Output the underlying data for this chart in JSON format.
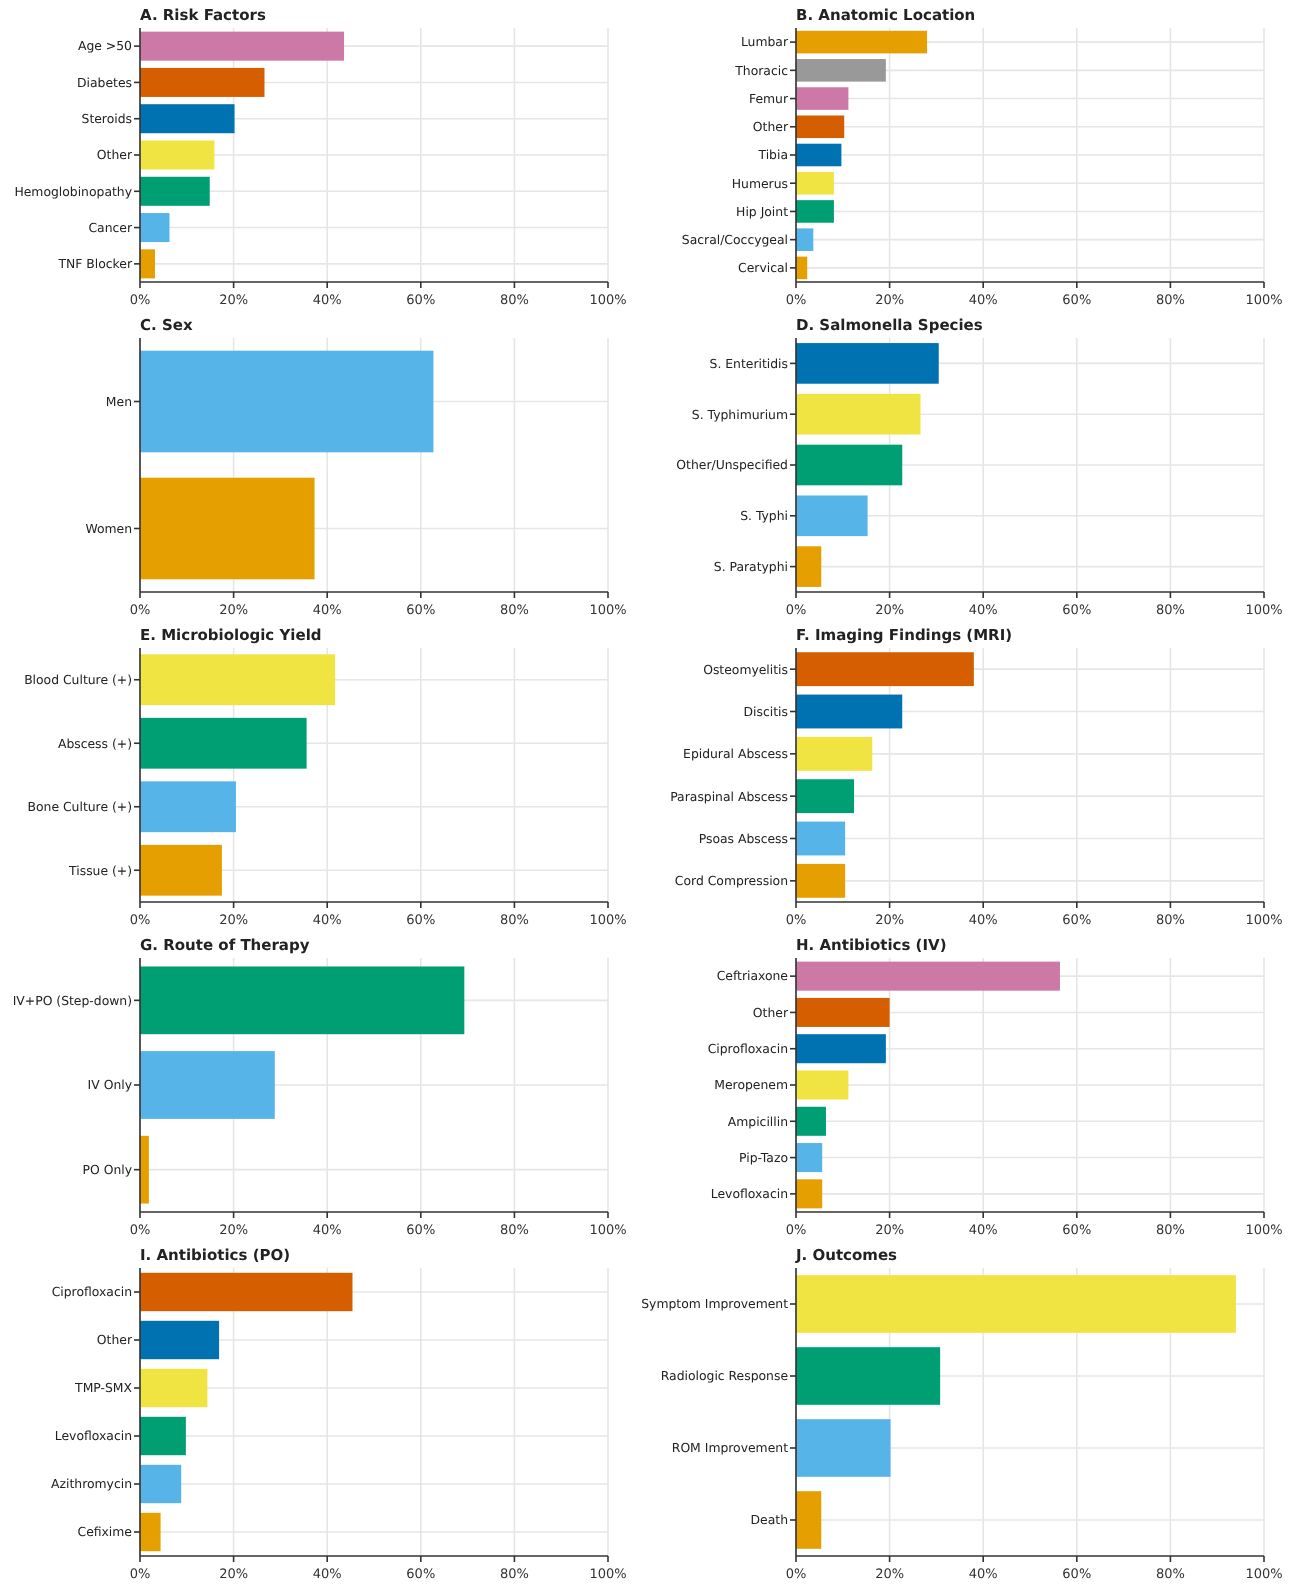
{
  "chart_data": [
    {
      "type": "bar",
      "orientation": "horizontal",
      "title": "A. Risk Factors",
      "categories": [
        "Age >50",
        "Diabetes",
        "Steroids",
        "Other",
        "Hemoglobinopathy",
        "Cancer",
        "TNF Blocker"
      ],
      "values": [
        43.6,
        26.6,
        20.2,
        15.9,
        14.9,
        6.3,
        3.2
      ],
      "colors": [
        "#cc79a7",
        "#d55e00",
        "#0072b2",
        "#f0e442",
        "#009e73",
        "#56b4e9",
        "#e69f00"
      ],
      "xlim": [
        0,
        100
      ],
      "xticks": [
        {
          "value": 0,
          "label": "0%"
        },
        {
          "value": 20,
          "label": "20%"
        },
        {
          "value": 40,
          "label": "40%"
        },
        {
          "value": 60,
          "label": "60%"
        },
        {
          "value": 80,
          "label": "80%"
        },
        {
          "value": 100,
          "label": "100%"
        }
      ],
      "grid": true
    },
    {
      "type": "bar",
      "orientation": "horizontal",
      "title": "B. Anatomic Location",
      "categories": [
        "Lumbar",
        "Thoracic",
        "Femur",
        "Other",
        "Tibia",
        "Humerus",
        "Hip Joint",
        "Sacral/Coccygeal",
        "Cervical"
      ],
      "values": [
        28,
        19.2,
        11.2,
        10.3,
        9.7,
        8.1,
        8.1,
        3.7,
        2.4
      ],
      "colors": [
        "#e69f00",
        "#999999",
        "#cc79a7",
        "#d55e00",
        "#0072b2",
        "#f0e442",
        "#009e73",
        "#56b4e9",
        "#e69f00"
      ],
      "xlim": [
        0,
        100
      ],
      "xticks": [
        {
          "value": 0,
          "label": "0%"
        },
        {
          "value": 20,
          "label": "20%"
        },
        {
          "value": 40,
          "label": "40%"
        },
        {
          "value": 60,
          "label": "60%"
        },
        {
          "value": 80,
          "label": "80%"
        },
        {
          "value": 100,
          "label": "100%"
        }
      ],
      "grid": true
    },
    {
      "type": "bar",
      "orientation": "horizontal",
      "title": "C. Sex",
      "categories": [
        "Men",
        "Women"
      ],
      "values": [
        62.7,
        37.3
      ],
      "colors": [
        "#56b4e9",
        "#e69f00"
      ],
      "xlim": [
        0,
        100
      ],
      "xticks": [
        {
          "value": 0,
          "label": "0%"
        },
        {
          "value": 20,
          "label": "20%"
        },
        {
          "value": 40,
          "label": "40%"
        },
        {
          "value": 60,
          "label": "60%"
        },
        {
          "value": 80,
          "label": "80%"
        },
        {
          "value": 100,
          "label": "100%"
        }
      ],
      "grid": true
    },
    {
      "type": "bar",
      "orientation": "horizontal",
      "title": "D. Salmonella Species",
      "categories": [
        "S. Enteritidis",
        "S. Typhimurium",
        "Other/Unspecified",
        "S. Typhi",
        "S. Paratyphi"
      ],
      "values": [
        30.5,
        26.6,
        22.7,
        15.3,
        5.4
      ],
      "colors": [
        "#0072b2",
        "#f0e442",
        "#009e73",
        "#56b4e9",
        "#e69f00"
      ],
      "xlim": [
        0,
        100
      ],
      "xticks": [
        {
          "value": 0,
          "label": "0%"
        },
        {
          "value": 20,
          "label": "20%"
        },
        {
          "value": 40,
          "label": "40%"
        },
        {
          "value": 60,
          "label": "60%"
        },
        {
          "value": 80,
          "label": "80%"
        },
        {
          "value": 100,
          "label": "100%"
        }
      ],
      "grid": true
    },
    {
      "type": "bar",
      "orientation": "horizontal",
      "title": "E. Microbiologic Yield",
      "categories": [
        "Blood Culture (+)",
        "Abscess (+)",
        "Bone Culture (+)",
        "Tissue (+)"
      ],
      "values": [
        41.7,
        35.6,
        20.5,
        17.5
      ],
      "colors": [
        "#f0e442",
        "#009e73",
        "#56b4e9",
        "#e69f00"
      ],
      "xlim": [
        0,
        100
      ],
      "xticks": [
        {
          "value": 0,
          "label": "0%"
        },
        {
          "value": 20,
          "label": "20%"
        },
        {
          "value": 40,
          "label": "40%"
        },
        {
          "value": 60,
          "label": "60%"
        },
        {
          "value": 80,
          "label": "80%"
        },
        {
          "value": 100,
          "label": "100%"
        }
      ],
      "grid": true
    },
    {
      "type": "bar",
      "orientation": "horizontal",
      "title": "F. Imaging Findings (MRI)",
      "categories": [
        "Osteomyelitis",
        "Discitis",
        "Epidural Abscess",
        "Paraspinal Abscess",
        "Psoas Abscess",
        "Cord Compression"
      ],
      "values": [
        38,
        22.7,
        16.3,
        12.4,
        10.5,
        10.5
      ],
      "colors": [
        "#d55e00",
        "#0072b2",
        "#f0e442",
        "#009e73",
        "#56b4e9",
        "#e69f00"
      ],
      "xlim": [
        0,
        100
      ],
      "xticks": [
        {
          "value": 0,
          "label": "0%"
        },
        {
          "value": 20,
          "label": "20%"
        },
        {
          "value": 40,
          "label": "40%"
        },
        {
          "value": 60,
          "label": "60%"
        },
        {
          "value": 80,
          "label": "80%"
        },
        {
          "value": 100,
          "label": "100%"
        }
      ],
      "grid": true
    },
    {
      "type": "bar",
      "orientation": "horizontal",
      "title": "G. Route of Therapy",
      "categories": [
        "IV+PO (Step-down)",
        "IV Only",
        "PO Only"
      ],
      "values": [
        69.3,
        28.8,
        1.9
      ],
      "colors": [
        "#009e73",
        "#56b4e9",
        "#e69f00"
      ],
      "xlim": [
        0,
        100
      ],
      "xticks": [
        {
          "value": 0,
          "label": "0%"
        },
        {
          "value": 20,
          "label": "20%"
        },
        {
          "value": 40,
          "label": "40%"
        },
        {
          "value": 60,
          "label": "60%"
        },
        {
          "value": 80,
          "label": "80%"
        },
        {
          "value": 100,
          "label": "100%"
        }
      ],
      "grid": true
    },
    {
      "type": "bar",
      "orientation": "horizontal",
      "title": "H. Antibiotics (IV)",
      "categories": [
        "Ceftriaxone",
        "Other",
        "Ciprofloxacin",
        "Meropenem",
        "Ampicillin",
        "Pip-Tazo",
        "Levofloxacin"
      ],
      "values": [
        56.4,
        20,
        19.2,
        11.2,
        6.4,
        5.6,
        5.6
      ],
      "colors": [
        "#cc79a7",
        "#d55e00",
        "#0072b2",
        "#f0e442",
        "#009e73",
        "#56b4e9",
        "#e69f00"
      ],
      "xlim": [
        0,
        100
      ],
      "xticks": [
        {
          "value": 0,
          "label": "0%"
        },
        {
          "value": 20,
          "label": "20%"
        },
        {
          "value": 40,
          "label": "40%"
        },
        {
          "value": 60,
          "label": "60%"
        },
        {
          "value": 80,
          "label": "80%"
        },
        {
          "value": 100,
          "label": "100%"
        }
      ],
      "grid": true
    },
    {
      "type": "bar",
      "orientation": "horizontal",
      "title": "I. Antibiotics (PO)",
      "categories": [
        "Ciprofloxacin",
        "Other",
        "TMP-SMX",
        "Levofloxacin",
        "Azithromycin",
        "Cefixime"
      ],
      "values": [
        45.4,
        16.9,
        14.4,
        9.8,
        8.8,
        4.4
      ],
      "colors": [
        "#d55e00",
        "#0072b2",
        "#f0e442",
        "#009e73",
        "#56b4e9",
        "#e69f00"
      ],
      "xlim": [
        0,
        100
      ],
      "xticks": [
        {
          "value": 0,
          "label": "0%"
        },
        {
          "value": 20,
          "label": "20%"
        },
        {
          "value": 40,
          "label": "40%"
        },
        {
          "value": 60,
          "label": "60%"
        },
        {
          "value": 80,
          "label": "80%"
        },
        {
          "value": 100,
          "label": "100%"
        }
      ],
      "grid": true
    },
    {
      "type": "bar",
      "orientation": "horizontal",
      "title": "J. Outcomes",
      "categories": [
        "Symptom Improvement",
        "Radiologic Response",
        "ROM Improvement",
        "Death"
      ],
      "values": [
        94,
        30.8,
        20.2,
        5.4
      ],
      "colors": [
        "#f0e442",
        "#009e73",
        "#56b4e9",
        "#e69f00"
      ],
      "xlim": [
        0,
        100
      ],
      "xticks": [
        {
          "value": 0,
          "label": "0%"
        },
        {
          "value": 20,
          "label": "20%"
        },
        {
          "value": 40,
          "label": "40%"
        },
        {
          "value": 60,
          "label": "60%"
        },
        {
          "value": 80,
          "label": "80%"
        },
        {
          "value": 100,
          "label": "100%"
        }
      ],
      "grid": true
    }
  ]
}
